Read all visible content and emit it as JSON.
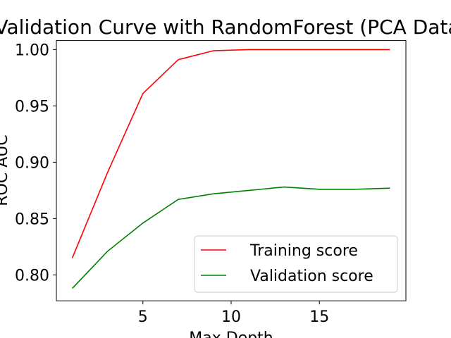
{
  "chart_data": {
    "type": "line",
    "title": "Validation Curve with RandomForest (PCA Data)",
    "xlabel": "Max Depth",
    "ylabel": "ROC AUC",
    "xlim": [
      0.1,
      19.9
    ],
    "ylim": [
      0.777,
      1.008
    ],
    "x_ticks": [
      5,
      10,
      15
    ],
    "y_ticks": [
      0.8,
      0.85,
      0.9,
      0.95,
      1.0
    ],
    "x_tick_labels": [
      "5",
      "10",
      "15"
    ],
    "y_tick_labels": [
      "0.80",
      "0.85",
      "0.90",
      "0.95",
      "1.00"
    ],
    "grid": false,
    "legend_position": "lower right",
    "x": [
      1,
      3,
      5,
      7,
      9,
      11,
      13,
      15,
      17,
      19
    ],
    "series": [
      {
        "name": "Training score",
        "color": "#ff0000",
        "values": [
          0.815,
          0.891,
          0.961,
          0.991,
          0.999,
          1.0,
          1.0,
          1.0,
          1.0,
          1.0
        ]
      },
      {
        "name": "Validation score",
        "color": "#008000",
        "values": [
          0.788,
          0.821,
          0.846,
          0.867,
          0.872,
          0.875,
          0.878,
          0.876,
          0.876,
          0.877
        ]
      }
    ]
  }
}
